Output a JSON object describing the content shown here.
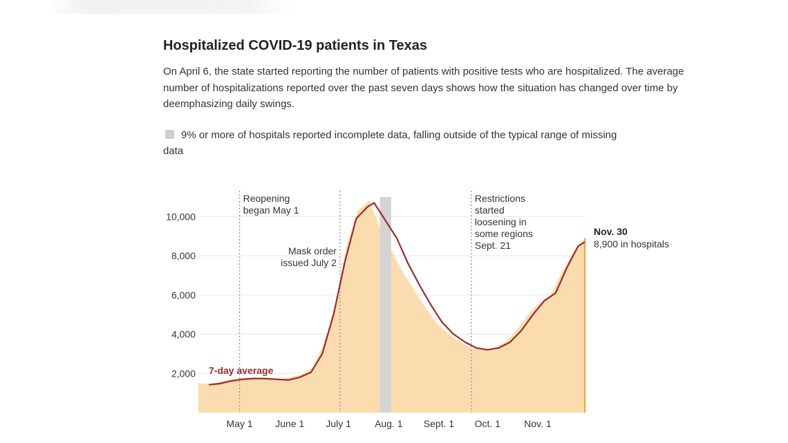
{
  "chart_data": {
    "type": "bar",
    "title": "Hospitalized COVID-19 patients in Texas",
    "subtitle": "On April 6, the state started reporting the number of patients with positive tests who are hospitalized. The average number of hospitalizations reported over the past seven days shows how the situation has changed over time by deemphasizing daily swings.",
    "legend_note": "9% or more of hospitals reported incomplete data, falling outside of the typical range of missing data",
    "x_ticks": [
      {
        "date": "2020-05-01",
        "label": "May 1"
      },
      {
        "date": "2020-06-01",
        "label": "June 1"
      },
      {
        "date": "2020-07-01",
        "label": "July 1"
      },
      {
        "date": "2020-08-01",
        "label": "Aug. 1"
      },
      {
        "date": "2020-09-01",
        "label": "Sept. 1"
      },
      {
        "date": "2020-10-01",
        "label": "Oct. 1"
      },
      {
        "date": "2020-11-01",
        "label": "Nov. 1"
      }
    ],
    "y_ticks": [
      {
        "value": 2000,
        "label": "2,000"
      },
      {
        "value": 4000,
        "label": "4,000"
      },
      {
        "value": 6000,
        "label": "6,000"
      },
      {
        "value": 8000,
        "label": "8,000"
      },
      {
        "value": 10000,
        "label": "10,000"
      }
    ],
    "xlim": [
      "2020-04-06",
      "2020-11-30"
    ],
    "ylim": [
      0,
      11000
    ],
    "grid": "horizontal",
    "series": [
      {
        "kind": "daily",
        "color": "#fbdcae",
        "points": [
          [
            "2020-04-06",
            1500
          ],
          [
            "2020-04-13",
            1450
          ],
          [
            "2020-04-20",
            1620
          ],
          [
            "2020-04-27",
            1700
          ],
          [
            "2020-05-04",
            1790
          ],
          [
            "2020-05-11",
            1760
          ],
          [
            "2020-05-18",
            1780
          ],
          [
            "2020-05-25",
            1700
          ],
          [
            "2020-06-01",
            1800
          ],
          [
            "2020-06-08",
            1940
          ],
          [
            "2020-06-15",
            2300
          ],
          [
            "2020-06-22",
            3500
          ],
          [
            "2020-06-29",
            5500
          ],
          [
            "2020-07-06",
            8500
          ],
          [
            "2020-07-13",
            10300
          ],
          [
            "2020-07-20",
            10800
          ],
          [
            "2020-07-27",
            9300
          ],
          [
            "2020-08-03",
            8200
          ],
          [
            "2020-08-10",
            7100
          ],
          [
            "2020-08-17",
            6200
          ],
          [
            "2020-08-24",
            5300
          ],
          [
            "2020-08-31",
            4500
          ],
          [
            "2020-09-07",
            4000
          ],
          [
            "2020-09-14",
            3600
          ],
          [
            "2020-09-21",
            3300
          ],
          [
            "2020-09-28",
            3200
          ],
          [
            "2020-10-05",
            3300
          ],
          [
            "2020-10-12",
            3600
          ],
          [
            "2020-10-19",
            4200
          ],
          [
            "2020-10-26",
            5000
          ],
          [
            "2020-11-02",
            5600
          ],
          [
            "2020-11-09",
            6000
          ],
          [
            "2020-11-16",
            7200
          ],
          [
            "2020-11-23",
            8200
          ],
          [
            "2020-11-30",
            8900
          ]
        ]
      },
      {
        "kind": "average",
        "name": "7-day average",
        "color": "#9c2b28",
        "points": [
          [
            "2020-04-12",
            1420
          ],
          [
            "2020-04-19",
            1480
          ],
          [
            "2020-04-26",
            1620
          ],
          [
            "2020-05-03",
            1700
          ],
          [
            "2020-05-10",
            1740
          ],
          [
            "2020-05-17",
            1730
          ],
          [
            "2020-05-24",
            1700
          ],
          [
            "2020-05-31",
            1660
          ],
          [
            "2020-06-07",
            1800
          ],
          [
            "2020-06-14",
            2050
          ],
          [
            "2020-06-21",
            3000
          ],
          [
            "2020-06-28",
            5000
          ],
          [
            "2020-07-05",
            7700
          ],
          [
            "2020-07-12",
            9900
          ],
          [
            "2020-07-19",
            10500
          ],
          [
            "2020-07-23",
            10700
          ],
          [
            "2020-07-30",
            9800
          ],
          [
            "2020-08-06",
            8900
          ],
          [
            "2020-08-13",
            7600
          ],
          [
            "2020-08-20",
            6500
          ],
          [
            "2020-08-27",
            5500
          ],
          [
            "2020-09-03",
            4600
          ],
          [
            "2020-09-10",
            4000
          ],
          [
            "2020-09-17",
            3600
          ],
          [
            "2020-09-24",
            3300
          ],
          [
            "2020-10-01",
            3200
          ],
          [
            "2020-10-08",
            3300
          ],
          [
            "2020-10-15",
            3600
          ],
          [
            "2020-10-22",
            4200
          ],
          [
            "2020-10-29",
            5000
          ],
          [
            "2020-11-05",
            5700
          ],
          [
            "2020-11-12",
            6100
          ],
          [
            "2020-11-19",
            7400
          ],
          [
            "2020-11-26",
            8500
          ],
          [
            "2020-11-30",
            8700
          ]
        ]
      }
    ],
    "shaded_range": {
      "start": "2020-07-27",
      "end": "2020-08-02",
      "color": "#d4d4d4"
    },
    "annotations": [
      {
        "date": "2020-05-01",
        "lines": [
          "Reopening",
          "began May 1"
        ]
      },
      {
        "date": "2020-07-02",
        "lines": [
          "Mask order",
          "issued July 2"
        ]
      },
      {
        "date": "2020-09-21",
        "lines": [
          "Restrictions",
          "started",
          "loosening in",
          "some regions",
          "Sept. 21"
        ]
      }
    ],
    "series_label": "7-day average",
    "end_label": {
      "title": "Nov. 30",
      "text": "8,900 in hospitals"
    }
  }
}
